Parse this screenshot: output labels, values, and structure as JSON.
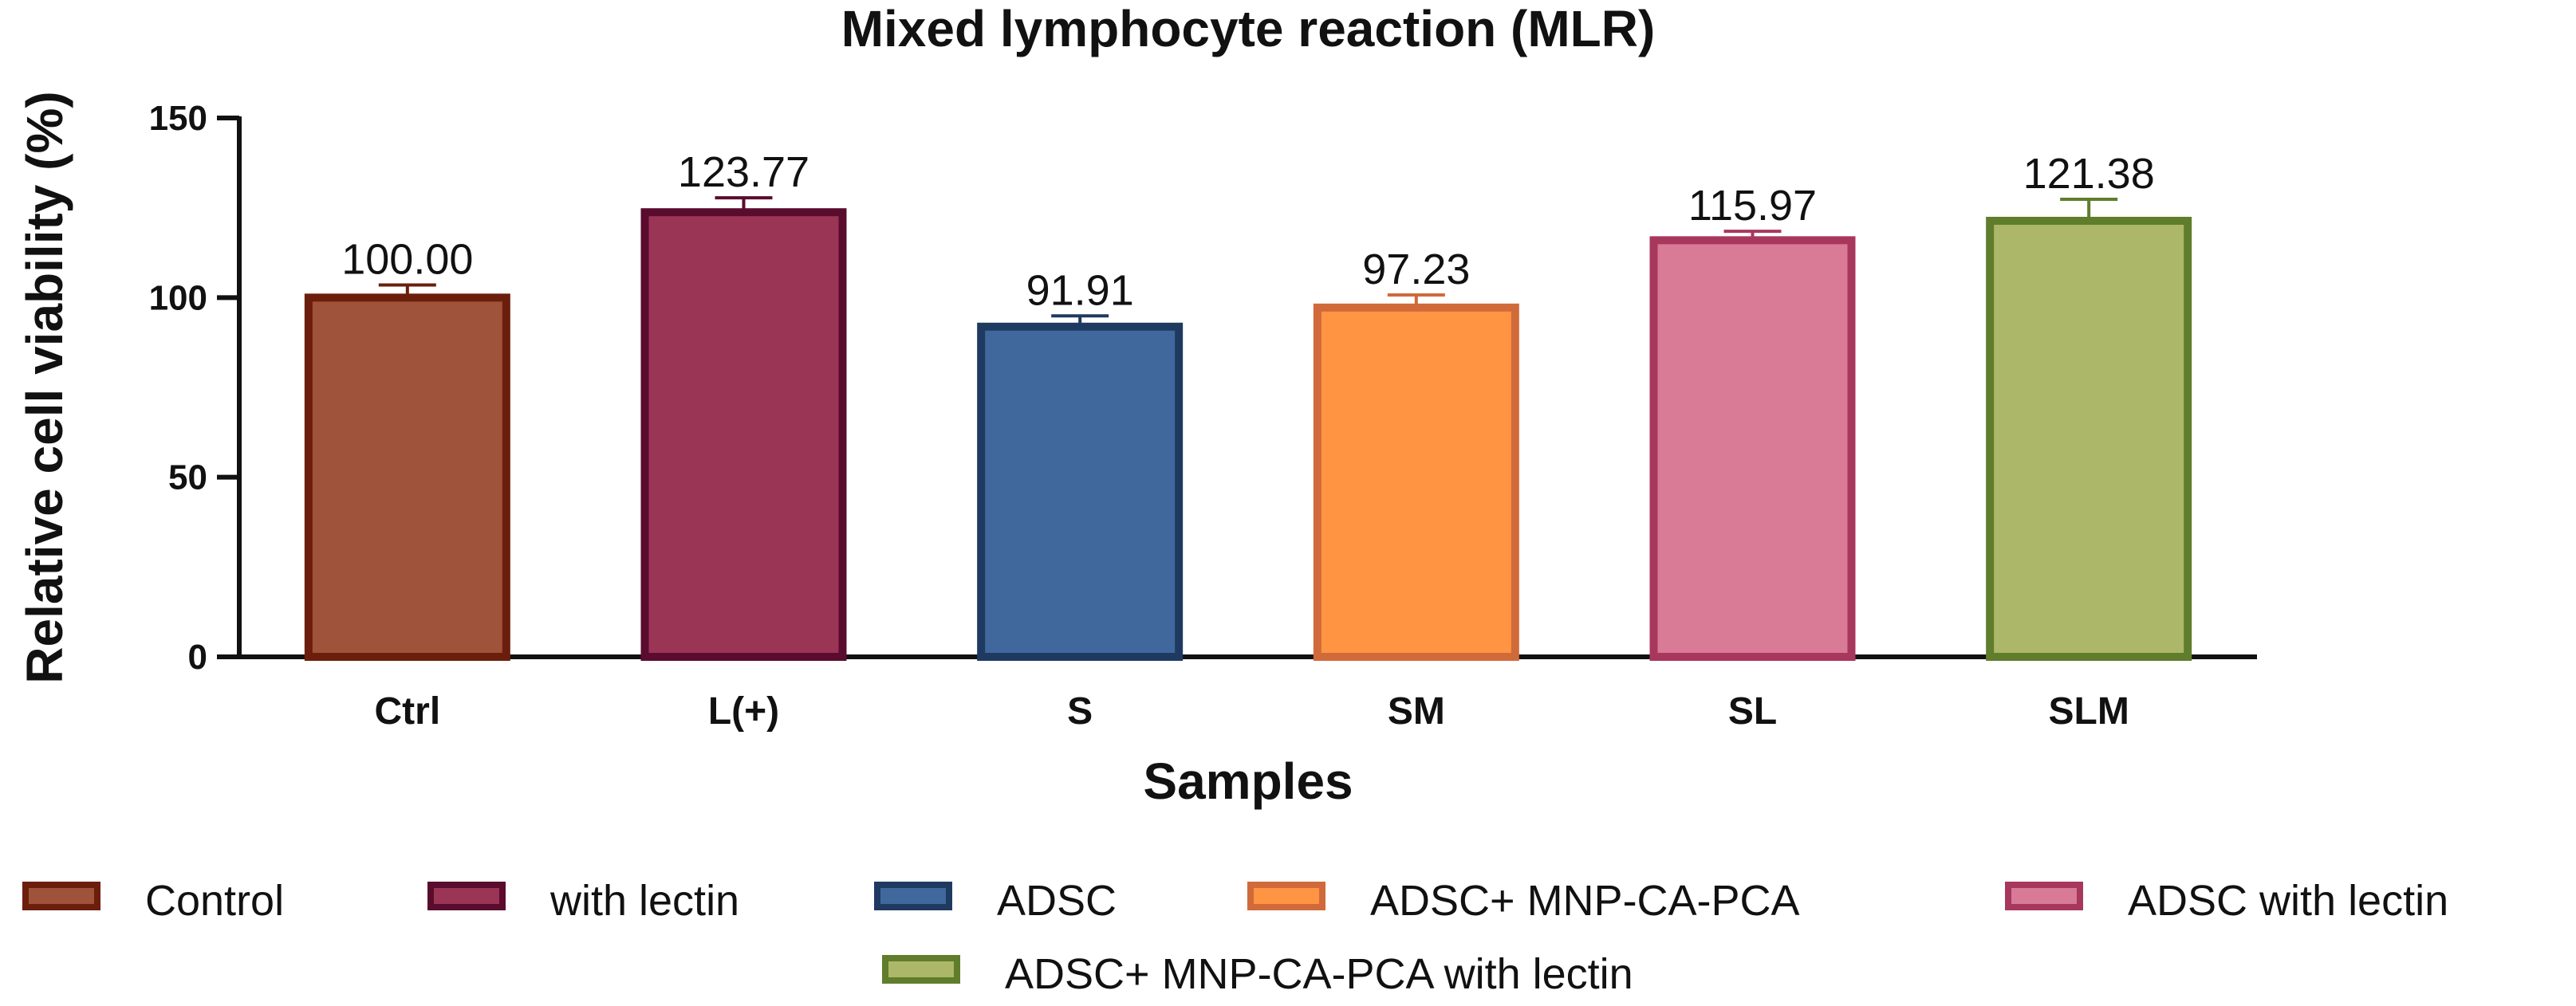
{
  "chart_data": {
    "type": "bar",
    "title": "Mixed lymphocyte reaction (MLR)",
    "xlabel": "Samples",
    "ylabel": "Relative cell viability (%)",
    "ylim": [
      0,
      150
    ],
    "yticks": [
      0,
      50,
      100,
      150
    ],
    "categories": [
      "Ctrl",
      "L(+)",
      "S",
      "SM",
      "SL",
      "SLM"
    ],
    "values": [
      100.0,
      123.77,
      91.91,
      97.23,
      115.97,
      121.38
    ],
    "value_labels": [
      "100.00",
      "123.77",
      "91.91",
      "97.23",
      "115.97",
      "121.38"
    ],
    "errors": [
      3.5,
      4.0,
      3.0,
      3.5,
      2.5,
      6.0
    ],
    "legend": [
      "Control",
      "with lectin",
      "ADSC",
      "ADSC+ MNP-CA-PCA",
      "ADSC with lectin",
      "ADSC+ MNP-CA-PCA with lectin"
    ],
    "fill_colors": [
      "#a0533b",
      "#9b3556",
      "#41689c",
      "#ff9443",
      "#d97a96",
      "#adb76a"
    ],
    "edge_colors": [
      "#6b1e0c",
      "#5a0c2e",
      "#1f3a60",
      "#d06a3a",
      "#a8375e",
      "#5f7d2b"
    ],
    "legend_position": "bottom",
    "grid": false
  }
}
